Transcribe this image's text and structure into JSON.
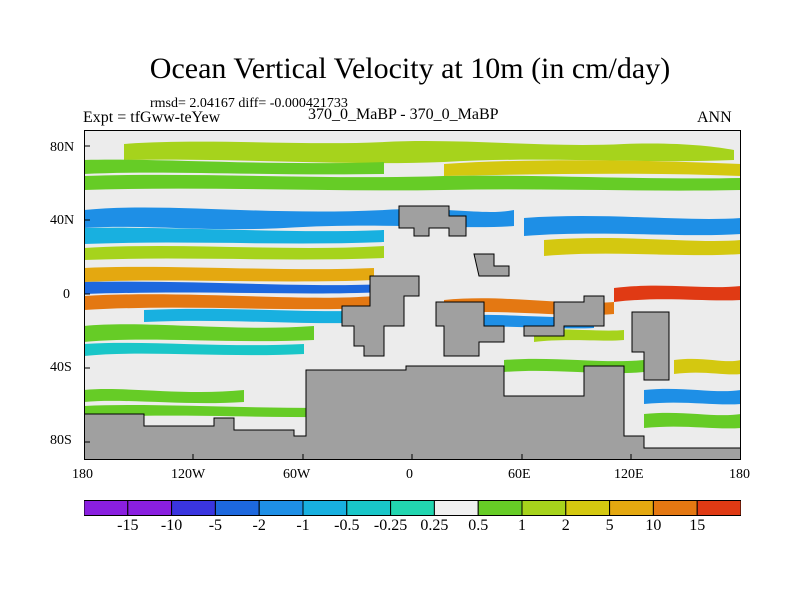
{
  "title": "Ocean Vertical Velocity at 10m (in cm/day)",
  "stats": "rmsd= 2.04167 diff= -0.000421733",
  "experiment": "Expt = tfGww-teYew",
  "case": "370_0_MaBP - 370_0_MaBP",
  "season": "ANN",
  "y_ticks": [
    "80N",
    "40N",
    "0",
    "40S",
    "80S"
  ],
  "x_ticks": [
    "180",
    "120W",
    "60W",
    "0",
    "60E",
    "120E",
    "180"
  ],
  "colorbar": {
    "labels": [
      "-15",
      "-10",
      "-5",
      "-2",
      "-1",
      "-0.5",
      "-0.25",
      "0.25",
      "0.5",
      "1",
      "2",
      "5",
      "10",
      "15"
    ],
    "colors": [
      "#8a1fe0",
      "#3a35e0",
      "#1d68de",
      "#1e8fe6",
      "#18b0e0",
      "#19c6c8",
      "#22d6b0",
      "#f0f0f0",
      "#66cc26",
      "#a6d31c",
      "#d4c810",
      "#e4a810",
      "#e47812",
      "#e03a14"
    ]
  },
  "land_color": "#a0a0a0"
}
